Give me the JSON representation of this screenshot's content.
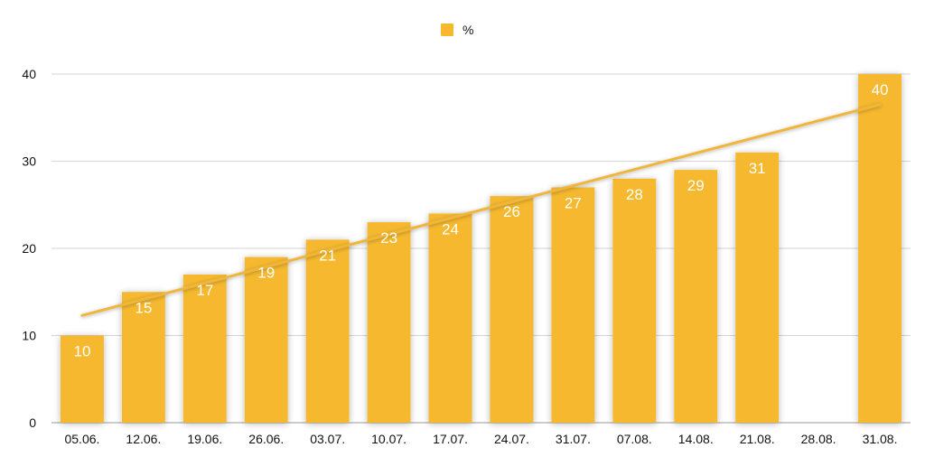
{
  "chart_data": {
    "type": "bar",
    "categories": [
      "05.06.",
      "12.06.",
      "19.06.",
      "26.06.",
      "03.07.",
      "10.07.",
      "17.07.",
      "24.07.",
      "31.07.",
      "07.08.",
      "14.08.",
      "21.08.",
      "28.08.",
      "31.08."
    ],
    "series": [
      {
        "name": "%",
        "values": [
          10,
          15,
          17,
          19,
          21,
          23,
          24,
          26,
          27,
          28,
          29,
          31,
          null,
          40
        ],
        "color": "#F5B82E"
      }
    ],
    "trendline": {
      "type": "linear",
      "start": 12.3,
      "end": 36.5,
      "color": "#F0B63A"
    },
    "ylim": [
      0,
      40
    ],
    "yticks": [
      "0",
      "10",
      "20",
      "30",
      "40"
    ],
    "grid": true,
    "legend": "top-center",
    "data_labels": true,
    "colors": {
      "grid": "#d4d4d4",
      "axis": "#9a9a9a",
      "label_text": "#ffffff",
      "tick_text": "#111111"
    }
  }
}
